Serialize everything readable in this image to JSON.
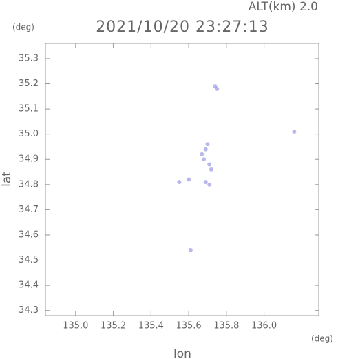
{
  "chart_data": {
    "type": "scatter",
    "title": "2021/10/20 23:27:13",
    "annotation": "ALT(km) 2.0",
    "x_unit": "(deg)",
    "y_unit": "(deg)",
    "xlabel": "lon",
    "ylabel": "lat",
    "xlim": [
      134.84,
      136.29
    ],
    "ylim": [
      34.28,
      35.36
    ],
    "xticks": [
      {
        "value": 135.0,
        "label": "135.0"
      },
      135.2,
      135.4,
      135.6,
      135.8,
      {
        "value": 136.0,
        "label": "136.0"
      }
    ],
    "yticks": [
      34.3,
      34.4,
      34.5,
      34.6,
      34.7,
      34.8,
      34.9,
      {
        "value": 35.0,
        "label": "35.0"
      },
      35.1,
      35.2,
      35.3
    ],
    "color": "#9a9ae6",
    "x": [
      135.75,
      135.74,
      136.16,
      135.67,
      135.69,
      135.68,
      135.71,
      135.7,
      135.71,
      135.69,
      135.55,
      135.6,
      135.61,
      135.72
    ],
    "y": [
      35.18,
      35.19,
      35.01,
      34.92,
      34.94,
      34.9,
      34.88,
      34.96,
      34.8,
      34.81,
      34.81,
      34.82,
      34.54,
      34.86
    ]
  }
}
